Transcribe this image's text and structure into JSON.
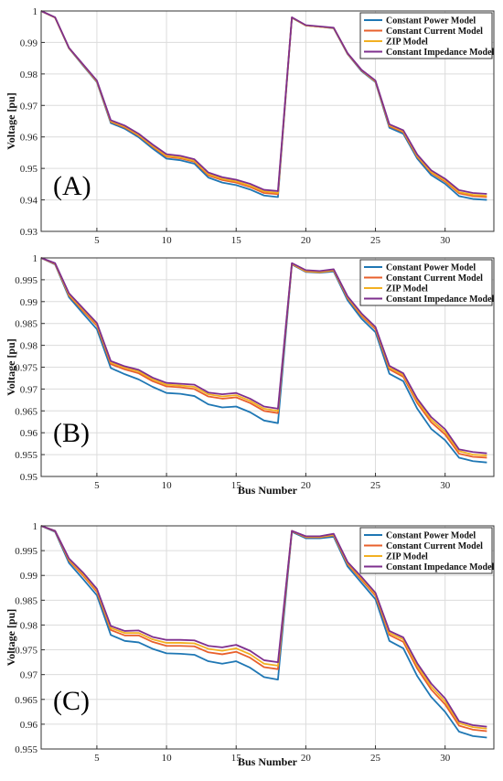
{
  "chart_data": [
    {
      "type": "line",
      "panel_label": "(A)",
      "xlabel": "",
      "ylabel": "Voltage [pu]",
      "xlim": [
        1,
        33.5
      ],
      "ylim": [
        0.93,
        1
      ],
      "xticks": [
        5,
        10,
        15,
        20,
        25,
        30
      ],
      "yticks": [
        0.93,
        0.94,
        0.95,
        0.96,
        0.97,
        0.98,
        0.99,
        1
      ],
      "ytick_labels": [
        "0.93",
        "0.94",
        "0.95",
        "0.96",
        "0.97",
        "0.98",
        "0.99",
        "1"
      ],
      "grid": true,
      "legend_position": "top-right",
      "x": [
        1,
        2,
        3,
        4,
        5,
        6,
        7,
        8,
        9,
        10,
        11,
        12,
        13,
        14,
        15,
        16,
        17,
        18,
        19,
        20,
        21,
        22,
        23,
        24,
        25,
        26,
        27,
        28,
        29,
        30,
        31,
        32,
        33
      ],
      "series": [
        {
          "name": "Constant Power Model",
          "color": "#1f77b4",
          "values": [
            1,
            0.9979,
            0.9881,
            0.9827,
            0.9774,
            0.9644,
            0.9626,
            0.9599,
            0.9563,
            0.9531,
            0.9526,
            0.9515,
            0.9471,
            0.9455,
            0.9447,
            0.9433,
            0.9414,
            0.9409,
            0.9978,
            0.9954,
            0.995,
            0.9945,
            0.9863,
            0.9809,
            0.9774,
            0.9629,
            0.961,
            0.9531,
            0.9479,
            0.9451,
            0.9412,
            0.9403,
            0.94
          ]
        },
        {
          "name": "Constant Current Model",
          "color": "#e8602c",
          "values": [
            1,
            0.9979,
            0.9882,
            0.9829,
            0.9776,
            0.9648,
            0.963,
            0.9604,
            0.9569,
            0.9537,
            0.9532,
            0.9521,
            0.9478,
            0.9463,
            0.9455,
            0.9441,
            0.9422,
            0.9418,
            0.9979,
            0.9954,
            0.995,
            0.9946,
            0.9864,
            0.9811,
            0.9776,
            0.9634,
            0.9615,
            0.9537,
            0.9486,
            0.9458,
            0.9421,
            0.9412,
            0.9409
          ]
        },
        {
          "name": "ZIP Model",
          "color": "#f2b022",
          "values": [
            1,
            0.9979,
            0.9882,
            0.983,
            0.9777,
            0.965,
            0.9633,
            0.9606,
            0.9572,
            0.954,
            0.9535,
            0.9524,
            0.9482,
            0.9467,
            0.9459,
            0.9445,
            0.9427,
            0.9422,
            0.9979,
            0.9954,
            0.995,
            0.9946,
            0.9865,
            0.9812,
            0.9777,
            0.9637,
            0.9618,
            0.954,
            0.9489,
            0.9462,
            0.9425,
            0.9416,
            0.9413
          ]
        },
        {
          "name": "Constant Impedance Model",
          "color": "#7e2f8e",
          "values": [
            1,
            0.998,
            0.9883,
            0.9831,
            0.9779,
            0.9653,
            0.9636,
            0.961,
            0.9576,
            0.9545,
            0.954,
            0.9529,
            0.9487,
            0.9472,
            0.9464,
            0.9451,
            0.9432,
            0.9428,
            0.998,
            0.9955,
            0.9951,
            0.9947,
            0.9866,
            0.9813,
            0.9779,
            0.964,
            0.9621,
            0.9544,
            0.9494,
            0.9467,
            0.9431,
            0.9422,
            0.9419
          ]
        }
      ]
    },
    {
      "type": "line",
      "panel_label": "(B)",
      "xlabel": "Bus Number",
      "ylabel": "Voltage [pu]",
      "xlim": [
        1,
        33.5
      ],
      "ylim": [
        0.95,
        1
      ],
      "xticks": [
        5,
        10,
        15,
        20,
        25,
        30
      ],
      "yticks": [
        0.95,
        0.955,
        0.96,
        0.965,
        0.97,
        0.975,
        0.98,
        0.985,
        0.99,
        0.995,
        1
      ],
      "ytick_labels": [
        "0.95",
        "0.955",
        "0.96",
        "0.965",
        "0.97",
        "0.975",
        "0.98",
        "0.985",
        "0.99",
        "0.995",
        "1"
      ],
      "grid": true,
      "legend_position": "top-right",
      "x": [
        1,
        2,
        3,
        4,
        5,
        6,
        7,
        8,
        9,
        10,
        11,
        12,
        13,
        14,
        15,
        16,
        17,
        18,
        19,
        20,
        21,
        22,
        23,
        24,
        25,
        26,
        27,
        28,
        29,
        30,
        31,
        32,
        33
      ],
      "series": [
        {
          "name": "Constant Power Model",
          "color": "#1f77b4",
          "values": [
            1,
            0.9985,
            0.991,
            0.9873,
            0.9837,
            0.9748,
            0.9734,
            0.9722,
            0.9705,
            0.9691,
            0.9689,
            0.9684,
            0.9665,
            0.9658,
            0.966,
            0.9647,
            0.9628,
            0.9622,
            0.9985,
            0.9968,
            0.9966,
            0.9969,
            0.9903,
            0.9861,
            0.983,
            0.9735,
            0.9718,
            0.9655,
            0.9609,
            0.9583,
            0.9543,
            0.9535,
            0.9532
          ]
        },
        {
          "name": "Constant Current Model",
          "color": "#e8602c",
          "values": [
            1,
            0.9986,
            0.9914,
            0.9879,
            0.9845,
            0.9757,
            0.9745,
            0.9736,
            0.9718,
            0.9706,
            0.9704,
            0.97,
            0.9683,
            0.9678,
            0.9681,
            0.9668,
            0.965,
            0.9645,
            0.9986,
            0.9969,
            0.9967,
            0.9971,
            0.9908,
            0.9867,
            0.9837,
            0.9745,
            0.9728,
            0.9668,
            0.9624,
            0.9596,
            0.9552,
            0.9545,
            0.9543
          ]
        },
        {
          "name": "ZIP Model",
          "color": "#f2b022",
          "values": [
            1,
            0.9987,
            0.9916,
            0.9882,
            0.9848,
            0.9761,
            0.9749,
            0.974,
            0.9722,
            0.971,
            0.9708,
            0.9705,
            0.9688,
            0.9683,
            0.9686,
            0.9673,
            0.9655,
            0.965,
            0.9987,
            0.997,
            0.9968,
            0.9972,
            0.991,
            0.987,
            0.984,
            0.9749,
            0.9732,
            0.9673,
            0.963,
            0.9602,
            0.9558,
            0.955,
            0.9548
          ]
        },
        {
          "name": "Constant Impedance Model",
          "color": "#7e2f8e",
          "values": [
            1,
            0.9988,
            0.9919,
            0.9885,
            0.9851,
            0.9764,
            0.9752,
            0.9744,
            0.9726,
            0.9714,
            0.9712,
            0.971,
            0.9692,
            0.9688,
            0.9691,
            0.9678,
            0.966,
            0.9655,
            0.9988,
            0.9972,
            0.997,
            0.9974,
            0.9912,
            0.9873,
            0.9842,
            0.9753,
            0.9736,
            0.9678,
            0.9636,
            0.9608,
            0.9562,
            0.9556,
            0.9553
          ]
        }
      ]
    },
    {
      "type": "line",
      "panel_label": "(C)",
      "xlabel": "Bus Number",
      "ylabel": "Voltage [pu]",
      "xlim": [
        1,
        33.5
      ],
      "ylim": [
        0.955,
        1
      ],
      "xticks": [
        5,
        10,
        15,
        20,
        25,
        30
      ],
      "yticks": [
        0.955,
        0.96,
        0.965,
        0.97,
        0.975,
        0.98,
        0.985,
        0.99,
        0.995,
        1
      ],
      "ytick_labels": [
        "0.955",
        "0.96",
        "0.965",
        "0.97",
        "0.975",
        "0.98",
        "0.985",
        "0.99",
        "0.995",
        "1"
      ],
      "grid": true,
      "legend_position": "top-right",
      "x": [
        1,
        2,
        3,
        4,
        5,
        6,
        7,
        8,
        9,
        10,
        11,
        12,
        13,
        14,
        15,
        16,
        17,
        18,
        19,
        20,
        21,
        22,
        23,
        24,
        25,
        26,
        27,
        28,
        29,
        30,
        31,
        32,
        33
      ],
      "series": [
        {
          "name": "Constant Power Model",
          "color": "#1f77b4",
          "values": [
            1,
            0.9988,
            0.9925,
            0.9893,
            0.986,
            0.978,
            0.9768,
            0.9765,
            0.9752,
            0.9743,
            0.9742,
            0.974,
            0.9727,
            0.9722,
            0.9727,
            0.9714,
            0.9695,
            0.969,
            0.9988,
            0.9975,
            0.9975,
            0.9978,
            0.9918,
            0.9885,
            0.9852,
            0.9768,
            0.9753,
            0.9697,
            0.9655,
            0.9625,
            0.9585,
            0.9576,
            0.9573
          ]
        },
        {
          "name": "Constant Current Model",
          "color": "#e8602c",
          "values": [
            1,
            0.9989,
            0.993,
            0.99,
            0.9867,
            0.979,
            0.9779,
            0.9779,
            0.9766,
            0.9758,
            0.9758,
            0.9757,
            0.9745,
            0.9741,
            0.9746,
            0.9734,
            0.9715,
            0.9711,
            0.9989,
            0.9977,
            0.9977,
            0.9981,
            0.9923,
            0.9891,
            0.9859,
            0.978,
            0.9766,
            0.9712,
            0.967,
            0.964,
            0.9597,
            0.9589,
            0.9586
          ]
        },
        {
          "name": "ZIP Model",
          "color": "#f2b022",
          "values": [
            1,
            0.999,
            0.9932,
            0.9903,
            0.987,
            0.9794,
            0.9784,
            0.9784,
            0.9771,
            0.9764,
            0.9764,
            0.9763,
            0.9752,
            0.9748,
            0.9753,
            0.9741,
            0.9722,
            0.9718,
            0.999,
            0.9978,
            0.9978,
            0.9982,
            0.9925,
            0.9894,
            0.9862,
            0.9784,
            0.9771,
            0.9718,
            0.9676,
            0.9646,
            0.9602,
            0.9594,
            0.9591
          ]
        },
        {
          "name": "Constant Impedance Model",
          "color": "#7e2f8e",
          "values": [
            1,
            0.999,
            0.9934,
            0.9906,
            0.9873,
            0.9798,
            0.9788,
            0.9789,
            0.9776,
            0.977,
            0.977,
            0.9769,
            0.9758,
            0.9755,
            0.976,
            0.9748,
            0.9729,
            0.9725,
            0.999,
            0.9979,
            0.9979,
            0.9984,
            0.9927,
            0.9897,
            0.9865,
            0.9788,
            0.9775,
            0.9723,
            0.9682,
            0.9652,
            0.9606,
            0.9598,
            0.9595
          ]
        }
      ]
    }
  ]
}
